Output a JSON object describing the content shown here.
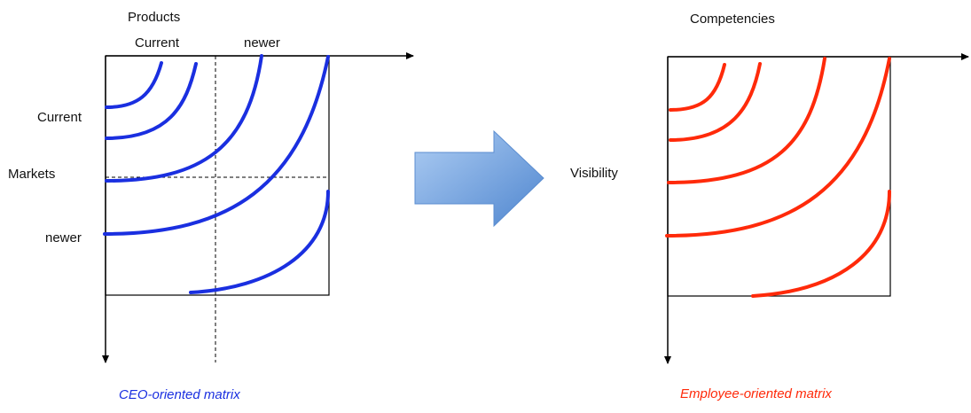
{
  "left_matrix": {
    "axis_top_title": "Products",
    "col_current": "Current",
    "col_newer": "newer",
    "axis_left_title": "Markets",
    "row_current": "Current",
    "row_newer": "newer",
    "caption": "CEO-oriented matrix",
    "curve_color": "#1a2fe0",
    "caption_color": "#1a2fe0"
  },
  "right_matrix": {
    "axis_top_title": "Competencies",
    "axis_left_title": "Visibility",
    "caption": "Employee-oriented matrix",
    "curve_color": "#ff2a0a",
    "caption_color": "#ff2a0a"
  },
  "arrow": {
    "icon": "right-arrow-icon",
    "fill_light": "#aecdf3",
    "fill_dark": "#4f86cf",
    "stroke": "#5b8dd0"
  }
}
